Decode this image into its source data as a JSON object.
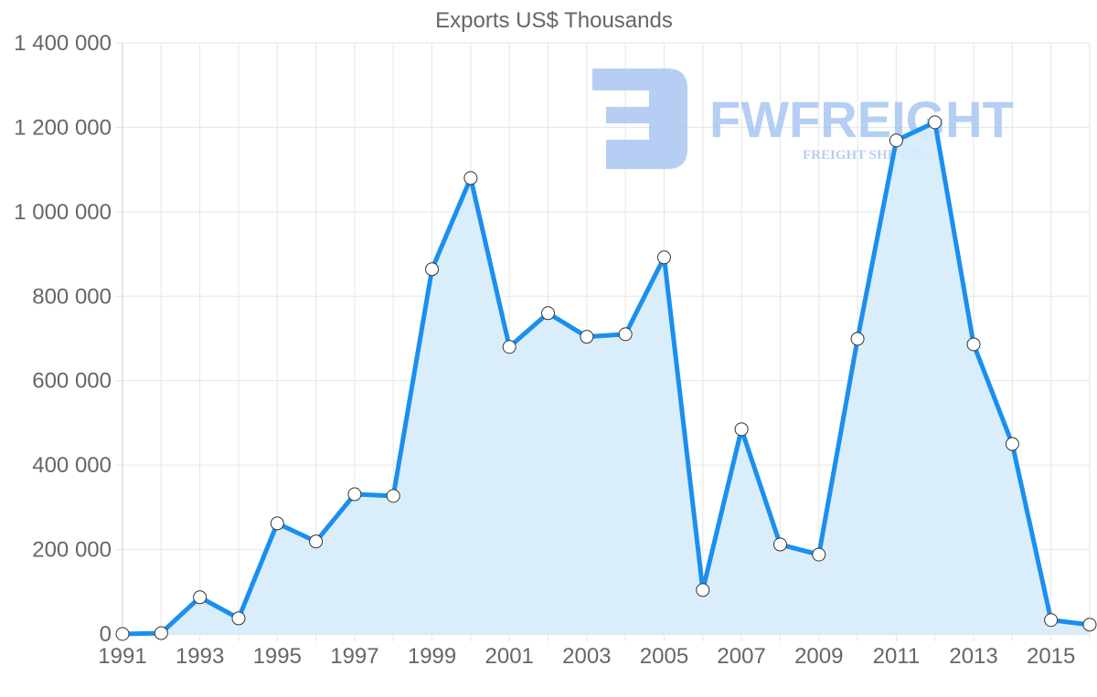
{
  "chart_data": {
    "type": "line",
    "title": "Exports US$ Thousands",
    "xlabel": "",
    "ylabel": "",
    "x": [
      1991,
      1992,
      1993,
      1994,
      1995,
      1996,
      1997,
      1998,
      1999,
      2000,
      2001,
      2002,
      2003,
      2004,
      2005,
      2006,
      2007,
      2008,
      2009,
      2010,
      2011,
      2012,
      2013,
      2014,
      2015,
      2016
    ],
    "series": [
      {
        "name": "Exports US$ Thousands",
        "values": [
          0,
          2000,
          87000,
          37000,
          262000,
          219000,
          331000,
          327000,
          864000,
          1080000,
          680000,
          760000,
          704000,
          710000,
          892000,
          104000,
          485000,
          212000,
          188000,
          699000,
          1169000,
          1212000,
          686000,
          450000,
          33000,
          22000
        ]
      }
    ],
    "ylim": [
      0,
      1400000
    ],
    "y_ticks": [
      "0",
      "200 000",
      "400 000",
      "600 000",
      "800 000",
      "1 000 000",
      "1 200 000",
      "1 400 000"
    ],
    "x_ticks": [
      "1991",
      "1993",
      "1995",
      "1997",
      "1999",
      "2001",
      "2003",
      "2005",
      "2007",
      "2009",
      "2011",
      "2013",
      "2015"
    ],
    "grid": true,
    "legend": "none",
    "filled_area": true,
    "colors": {
      "line": "#1a8ff0",
      "fill": "#d6ebfb",
      "point_fill": "#ffffff",
      "point_stroke": "#333333"
    }
  },
  "watermark": {
    "brand": "FWFREIGHT",
    "tagline": "FREIGHT SHIPPING",
    "color": "#a9c6f2"
  }
}
